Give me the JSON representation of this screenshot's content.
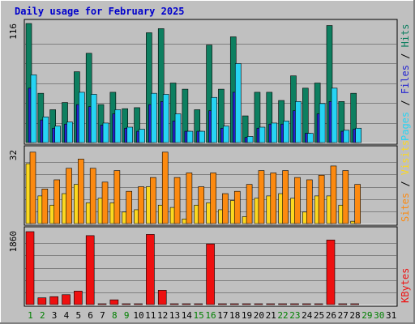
{
  "colors": {
    "background": "#c0c0c0",
    "title": "#0000cc",
    "hits": "#0d7f60",
    "files": "#2424d0",
    "pages": "#26d4f4",
    "visits": "#fcd820",
    "sites": "#fc8a10",
    "kbytes": "#ee1010",
    "weekday": "#000000",
    "weekend": "#008000"
  },
  "chart_data": {
    "type": "bar",
    "title": "Daily usage for February 2025",
    "categories": [
      "1",
      "2",
      "3",
      "4",
      "5",
      "6",
      "7",
      "8",
      "9",
      "10",
      "11",
      "12",
      "13",
      "14",
      "15",
      "16",
      "17",
      "18",
      "19",
      "20",
      "21",
      "22",
      "23",
      "24",
      "25",
      "26",
      "27",
      "28",
      "29",
      "30",
      "31"
    ],
    "weekend_days": [
      1,
      2,
      8,
      9,
      15,
      16,
      22,
      23,
      29,
      30
    ],
    "panels": [
      {
        "name": "hits-files-pages",
        "ymax_label": "116",
        "ylim": [
          0,
          116
        ],
        "grid": true,
        "legend": [
          {
            "text": "Hits",
            "color": "#0d7f60"
          },
          {
            "text": "Files",
            "color": "#2424d0"
          },
          {
            "text": "Pages",
            "color": "#26d4f4"
          }
        ],
        "legend_separator": " / ",
        "series": [
          {
            "name": "Hits",
            "values": [
              116,
              48,
              32,
              39,
              69,
              87,
              37,
              49,
              33,
              34,
              107,
              111,
              58,
              52,
              32,
              95,
              52,
              103,
              26,
              49,
              49,
              41,
              65,
              53,
              58,
              114,
              40,
              48,
              null,
              null,
              null
            ]
          },
          {
            "name": "Files",
            "values": [
              53,
              22,
              14,
              18,
              37,
              35,
              17,
              28,
              14,
              11,
              37,
              40,
              21,
              11,
              11,
              31,
              14,
              49,
              5,
              14,
              18,
              18,
              31,
              9,
              28,
              40,
              11,
              13,
              null,
              null,
              null
            ]
          },
          {
            "name": "Pages",
            "values": [
              66,
              25,
              16,
              20,
              49,
              47,
              19,
              32,
              15,
              13,
              48,
              47,
              28,
              11,
              11,
              44,
              16,
              77,
              6,
              15,
              19,
              21,
              40,
              9,
              38,
              53,
              12,
              14,
              null,
              null,
              null
            ]
          }
        ]
      },
      {
        "name": "visits-sites",
        "ymax_label": "32",
        "ylim": [
          0,
          32
        ],
        "grid": true,
        "legend": [
          {
            "text": "Visits",
            "color": "#fcd820"
          },
          {
            "text": "Sites",
            "color": "#fc8a10"
          }
        ],
        "legend_separator": " / ",
        "series": [
          {
            "name": "Visits",
            "values": [
              26,
              12,
              8,
              13,
              17,
              9,
              11,
              9,
              5,
              6,
              16,
              8,
              7,
              2,
              8,
              9,
              6,
              10,
              3,
              11,
              12,
              13,
              11,
              5,
              12,
              12,
              8,
              1,
              null,
              null,
              null
            ]
          },
          {
            "name": "Sites",
            "values": [
              31,
              15,
              19,
              24,
              28,
              24,
              18,
              23,
              14,
              16,
              20,
              31,
              20,
              22,
              16,
              22,
              13,
              14,
              17,
              23,
              22,
              23,
              20,
              19,
              21,
              25,
              23,
              17,
              null,
              null,
              null
            ]
          }
        ]
      },
      {
        "name": "kbytes",
        "ymax_label": "1860",
        "ylim": [
          0,
          1860
        ],
        "grid": true,
        "legend": [
          {
            "text": "KBytes",
            "color": "#ee1010"
          }
        ],
        "legend_separator": " / ",
        "series": [
          {
            "name": "KBytes",
            "values": [
              1840,
              170,
              200,
              250,
              340,
              1740,
              18,
              120,
              15,
              15,
              1770,
              360,
              15,
              15,
              15,
              1530,
              15,
              15,
              15,
              15,
              15,
              15,
              15,
              15,
              15,
              1630,
              15,
              15,
              null,
              null,
              null
            ]
          }
        ]
      }
    ]
  }
}
